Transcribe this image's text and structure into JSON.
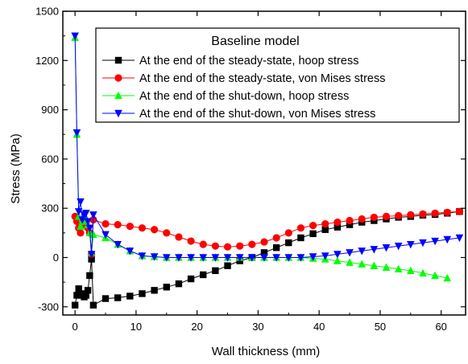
{
  "chart_data": {
    "type": "line",
    "title": "",
    "xlabel": "Wall thickness (mm)",
    "ylabel": "Stress (MPa)",
    "xlim": [
      -2,
      64
    ],
    "ylim": [
      -350,
      1500
    ],
    "xticks": [
      0,
      10,
      20,
      30,
      40,
      50,
      60
    ],
    "yticks": [
      -300,
      0,
      300,
      600,
      900,
      1200,
      1500
    ],
    "grid": false,
    "legend": {
      "title": "Baseline model",
      "placement": "top-right"
    },
    "series": [
      {
        "name": "At the end of the steady-state, hoop stress",
        "color": "#000000",
        "marker": "square",
        "x": [
          0,
          0.3,
          0.6,
          0.9,
          1.2,
          1.5,
          1.8,
          2.1,
          2.4,
          2.7,
          3.0,
          5,
          7,
          9,
          11,
          13,
          15,
          17,
          19,
          21,
          23,
          25,
          27,
          29,
          31,
          33,
          35,
          37,
          39,
          41,
          43,
          45,
          47,
          49,
          51,
          53,
          55,
          57,
          59,
          61,
          63
        ],
        "y": [
          -290,
          -230,
          -190,
          -230,
          -220,
          -240,
          -230,
          -200,
          -110,
          -10,
          -290,
          -250,
          -245,
          -235,
          -220,
          -200,
          -180,
          -160,
          -130,
          -105,
          -80,
          -50,
          -20,
          0,
          30,
          60,
          90,
          120,
          145,
          170,
          185,
          200,
          215,
          225,
          235,
          245,
          250,
          258,
          262,
          270,
          280
        ]
      },
      {
        "name": "At the end of the steady-state, von Mises stress",
        "color": "#ff0000",
        "marker": "circle",
        "x": [
          0,
          0.3,
          0.6,
          0.9,
          1.2,
          1.5,
          1.8,
          2.1,
          2.4,
          2.7,
          3.0,
          5,
          7,
          9,
          11,
          13,
          15,
          17,
          19,
          21,
          23,
          25,
          27,
          29,
          31,
          33,
          35,
          37,
          39,
          41,
          43,
          45,
          47,
          49,
          51,
          53,
          55,
          57,
          59,
          61,
          63
        ],
        "y": [
          250,
          220,
          180,
          150,
          200,
          230,
          210,
          180,
          150,
          20,
          230,
          205,
          200,
          190,
          180,
          170,
          150,
          125,
          100,
          80,
          70,
          65,
          70,
          80,
          95,
          120,
          150,
          180,
          195,
          205,
          215,
          225,
          235,
          245,
          250,
          255,
          260,
          265,
          270,
          275,
          280
        ]
      },
      {
        "name": "At the end of the shut-down, hoop stress",
        "color": "#00ff00",
        "marker": "triangle-up",
        "x": [
          0,
          0.3,
          0.6,
          0.9,
          1.2,
          1.5,
          1.8,
          2.1,
          2.4,
          2.7,
          3.0,
          5,
          7,
          9,
          11,
          13,
          15,
          17,
          19,
          21,
          23,
          25,
          27,
          29,
          31,
          33,
          35,
          37,
          39,
          41,
          43,
          45,
          47,
          49,
          51,
          53,
          55,
          57,
          59,
          61
        ],
        "y": [
          1340,
          750,
          250,
          190,
          220,
          260,
          230,
          200,
          150,
          30,
          140,
          120,
          80,
          40,
          10,
          5,
          0,
          0,
          0,
          0,
          0,
          0,
          0,
          0,
          0,
          0,
          0,
          0,
          -5,
          -10,
          -20,
          -30,
          -40,
          -50,
          -60,
          -70,
          -80,
          -95,
          -110,
          -125
        ]
      },
      {
        "name": "At the end of the shut-down, von Mises stress",
        "color": "#0000ff",
        "marker": "triangle-down",
        "x": [
          0,
          0.3,
          0.6,
          0.9,
          1.2,
          1.5,
          1.8,
          2.1,
          2.4,
          2.7,
          3.0,
          5,
          7,
          9,
          11,
          13,
          15,
          17,
          19,
          21,
          23,
          25,
          27,
          29,
          31,
          33,
          35,
          37,
          39,
          41,
          43,
          45,
          47,
          49,
          51,
          53,
          55,
          57,
          59,
          61,
          63
        ],
        "y": [
          1350,
          760,
          280,
          340,
          230,
          260,
          270,
          220,
          180,
          20,
          260,
          140,
          80,
          40,
          10,
          5,
          0,
          0,
          0,
          0,
          0,
          0,
          0,
          0,
          0,
          0,
          0,
          0,
          5,
          10,
          20,
          30,
          40,
          50,
          60,
          70,
          80,
          90,
          100,
          110,
          120
        ]
      }
    ]
  }
}
